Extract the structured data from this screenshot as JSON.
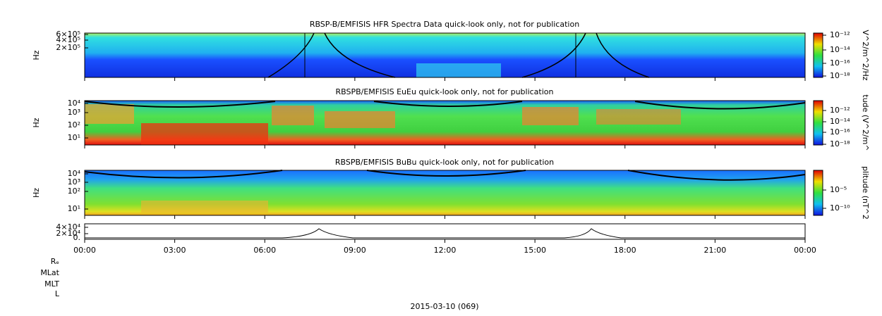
{
  "panels": [
    {
      "title": "RBSP-B/EMFISIS  HFR Spectra Data quick-look only, not for publication",
      "ylabel": "Hz",
      "yticks": [
        "6×10⁵",
        "4×10⁵",
        "2×10⁵"
      ],
      "colorbar_title": "V^2/m^2/Hz",
      "colorbar_ticks": [
        "10⁻¹²",
        "10⁻¹⁴",
        "10⁻¹⁶",
        "10⁻¹⁸"
      ]
    },
    {
      "title": "RBSPB/EMFISIS  EuEu quick-look only, not for publication",
      "ylabel": "Hz",
      "yticks": [
        "10⁴",
        "10³",
        "10²",
        "10¹"
      ],
      "colorbar_title": "tude (V^2/m^",
      "colorbar_ticks": [
        "10⁻¹²",
        "10⁻¹⁴",
        "10⁻¹⁶",
        "10⁻¹⁸"
      ]
    },
    {
      "title": "RBSPB/EMFISIS  BuBu quick-look only, not for publication",
      "ylabel": "Hz",
      "yticks": [
        "10⁴",
        "10³",
        "10²",
        "10¹"
      ],
      "colorbar_title": "plitude (nT^2",
      "colorbar_ticks": [
        "10⁻⁵",
        "10⁻¹⁰"
      ]
    },
    {
      "yticks": [
        "4×10⁴",
        "2×10⁴",
        "0."
      ]
    }
  ],
  "xticks": [
    "00:00",
    "03:00",
    "06:00",
    "09:00",
    "12:00",
    "15:00",
    "18:00",
    "21:00",
    "00:00"
  ],
  "ephemeris_labels": [
    "Rₑ",
    "MLat",
    "MLT",
    "L"
  ],
  "date": "2015-03-10 (069)"
}
